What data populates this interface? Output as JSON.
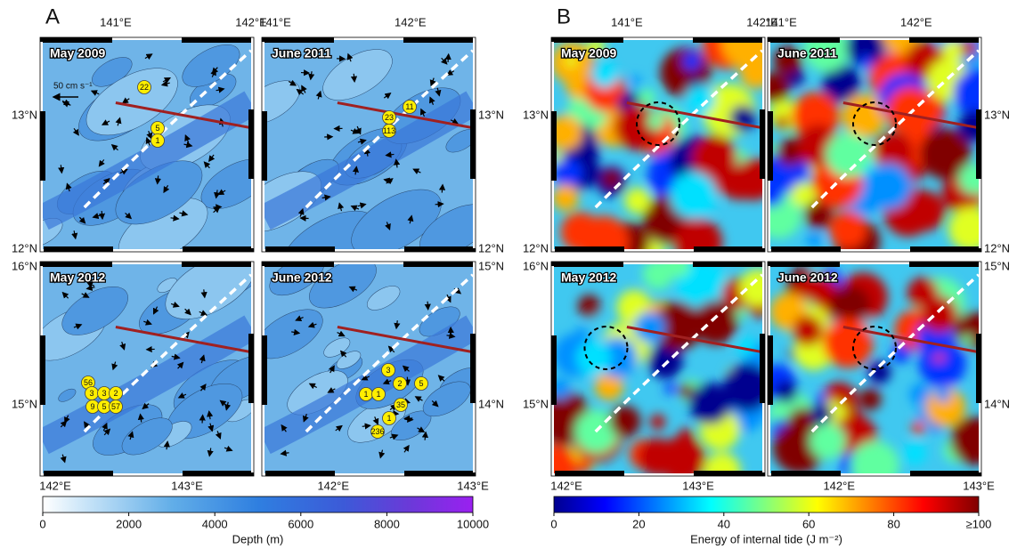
{
  "panels": [
    {
      "letter": "A",
      "maps": [
        {
          "title": "May 2009",
          "scale_label": "50 cm s⁻¹",
          "markers": [
            "22",
            "5",
            "1"
          ]
        },
        {
          "title": "June 2011",
          "markers": [
            "23",
            "11",
            "113"
          ]
        },
        {
          "title": "May 2012",
          "markers": [
            "56",
            "3",
            "3",
            "2",
            "9",
            "5",
            "57"
          ]
        },
        {
          "title": "June 2012",
          "markers": [
            "3",
            "2",
            "5",
            "1",
            "1",
            "35",
            "1",
            "236"
          ]
        }
      ],
      "top_labels": [
        "141°E",
        "142°E",
        "141°E",
        "142°E"
      ],
      "left_labels": [
        "13°N",
        "12°N",
        "16°N",
        "15°N"
      ],
      "right_labels": [
        "13°N",
        "12°N",
        "15°N",
        "14°N"
      ],
      "bottom_labels": [
        "142°E",
        "143°E",
        "142°E",
        "143°E"
      ],
      "colorbar": {
        "ticks": [
          "0",
          "2000",
          "4000",
          "6000",
          "8000",
          "10000"
        ],
        "label": "Depth (m)"
      }
    },
    {
      "letter": "B",
      "maps": [
        {
          "title": "May 2009"
        },
        {
          "title": "June 2011"
        },
        {
          "title": "May 2012"
        },
        {
          "title": "June 2012"
        }
      ],
      "top_labels": [
        "141°E",
        "142°E",
        "141°E",
        "142°E"
      ],
      "left_labels": [
        "13°N",
        "12°N",
        "16°N",
        "15°N"
      ],
      "right_labels": [
        "13°N",
        "12°N",
        "15°N",
        "14°N"
      ],
      "bottom_labels": [
        "142°E",
        "143°E",
        "142°E",
        "143°E"
      ],
      "colorbar": {
        "ticks": [
          "0",
          "20",
          "40",
          "60",
          "80",
          "≥100"
        ],
        "label": "Energy of internal tide (J m⁻²)"
      }
    }
  ]
}
